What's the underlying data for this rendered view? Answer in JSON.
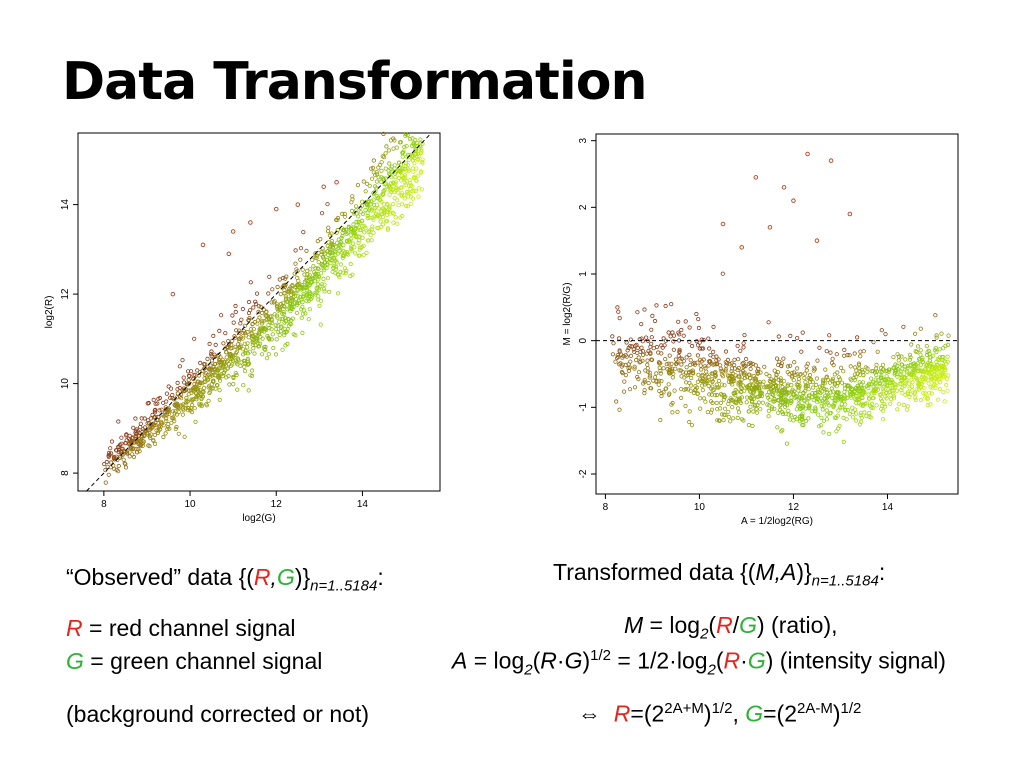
{
  "slide": {
    "title": "Data Transformation",
    "left_text": {
      "observed_prefix": "“Observed” data {(",
      "R": "R",
      "comma": ",",
      "G": "G",
      "close": ")}",
      "subscript": "n=1..5184",
      "colon": ":",
      "r_line_suffix": " = red channel signal",
      "g_line_suffix": " = green channel signal",
      "bg_line": "(background corrected or not)"
    },
    "right_text": {
      "transformed_prefix": "Transformed data {(",
      "MA": "M,A",
      "close": ")}",
      "subscript": "n=1..5184",
      "colon": ":",
      "M": "M",
      "eq_log2": " = log",
      "two": "2",
      "open_paren": "(",
      "slash": "/",
      "ratio_suffix": ")  (ratio),",
      "A": "A",
      "dot": "·",
      "half_exp": "1/2",
      "equals_half_log": " = 1/2·log",
      "intensity_suffix": ")  (intensity signal)",
      "iff": "⇔",
      "eq_open": "=(2",
      "exp_R": "2A+M",
      "close_paren": ")",
      "comma_sep": ", ",
      "exp_G": "2A-M"
    }
  },
  "colors": {
    "red": "#e8231c",
    "green": "#2bb334"
  },
  "chart_data": [
    {
      "type": "scatter",
      "title": "",
      "xlabel": "log2(G)",
      "ylabel": "log2(R)",
      "xlim": [
        7.4,
        15.8
      ],
      "ylim": [
        7.6,
        15.6
      ],
      "xticks": [
        "8",
        "10",
        "12",
        "14"
      ],
      "xtick_values": [
        8,
        10,
        12,
        14
      ],
      "yticks": [
        "8",
        "10",
        "12",
        "14"
      ],
      "ytick_values": [
        8,
        10,
        12,
        14
      ],
      "n_points": 5184,
      "reference_line": {
        "style": "dashed",
        "slope": 1,
        "intercept": 0
      },
      "trend": [
        [
          8,
          8.05
        ],
        [
          9,
          8.9
        ],
        [
          10,
          9.75
        ],
        [
          11,
          10.55
        ],
        [
          12,
          11.4
        ],
        [
          13,
          12.4
        ],
        [
          14,
          13.5
        ],
        [
          15,
          14.7
        ],
        [
          15.5,
          15.1
        ]
      ],
      "outliers": [
        [
          9.6,
          12.0
        ],
        [
          10.3,
          13.1
        ],
        [
          11.0,
          13.4
        ],
        [
          11.4,
          13.6
        ],
        [
          12.0,
          13.9
        ],
        [
          12.5,
          14.0
        ],
        [
          13.1,
          14.4
        ],
        [
          13.4,
          14.5
        ],
        [
          10.9,
          12.9
        ]
      ],
      "color_gradient": [
        "#8b3a1a",
        "#9a8f10",
        "#88cc10",
        "#ccf010"
      ]
    },
    {
      "type": "scatter",
      "title": "",
      "xlabel": "A = 1/2log2(RG)",
      "ylabel": "M = log2(R/G)",
      "xlim": [
        7.8,
        15.5
      ],
      "ylim": [
        -2.3,
        3.1
      ],
      "xticks": [
        "8",
        "10",
        "12",
        "14"
      ],
      "xtick_values": [
        8,
        10,
        12,
        14
      ],
      "yticks": [
        "-2",
        "-1",
        "0",
        "1",
        "2",
        "3"
      ],
      "ytick_values": [
        -2,
        -1,
        0,
        1,
        2,
        3
      ],
      "n_points": 5184,
      "reference_line": {
        "style": "dashed",
        "y": 0
      },
      "trend": [
        [
          8.2,
          -0.25
        ],
        [
          9,
          -0.4
        ],
        [
          10,
          -0.6
        ],
        [
          11,
          -0.75
        ],
        [
          12,
          -0.85
        ],
        [
          13,
          -0.9
        ],
        [
          14,
          -0.7
        ],
        [
          15,
          -0.45
        ]
      ],
      "outliers": [
        [
          12.3,
          2.8
        ],
        [
          12.8,
          2.7
        ],
        [
          11.2,
          2.45
        ],
        [
          11.8,
          2.3
        ],
        [
          12.0,
          2.1
        ],
        [
          10.5,
          1.75
        ],
        [
          13.2,
          1.9
        ],
        [
          10.9,
          1.4
        ],
        [
          12.5,
          1.5
        ],
        [
          11.5,
          1.7
        ]
      ],
      "color_gradient": [
        "#8b3a1a",
        "#9a8f10",
        "#88cc10",
        "#ccf010"
      ]
    }
  ]
}
